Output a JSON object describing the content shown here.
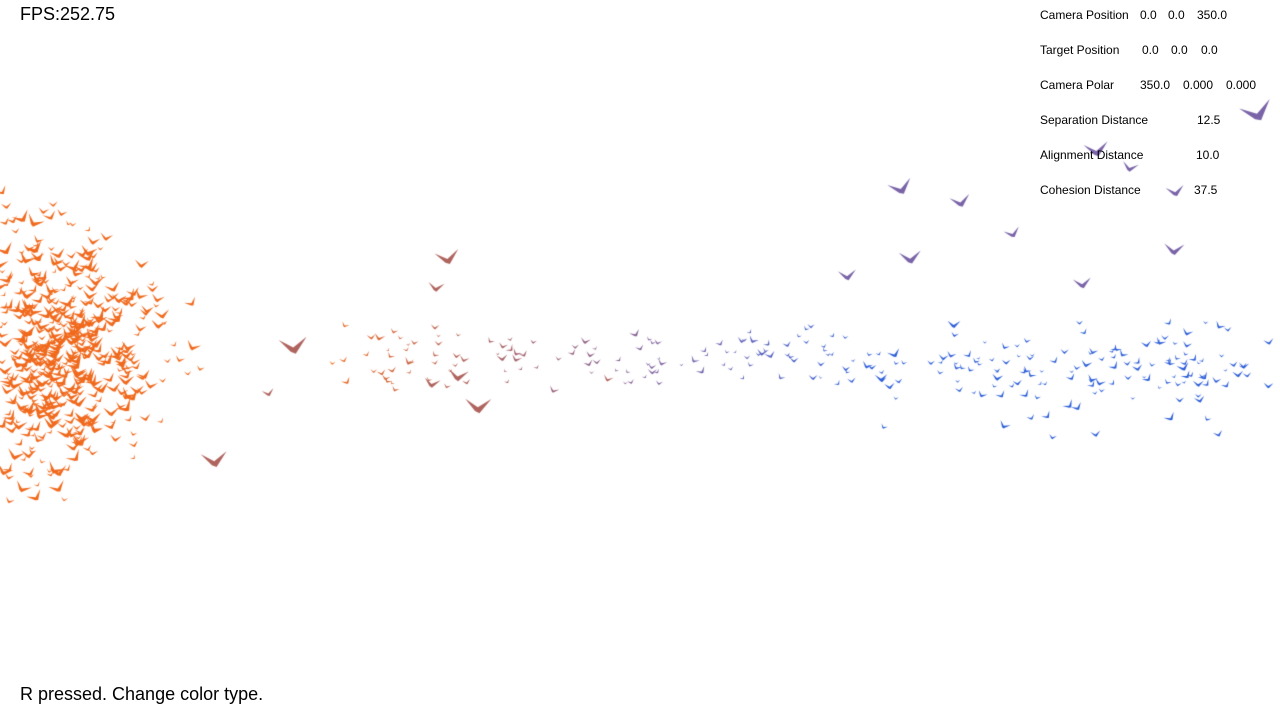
{
  "hud": {
    "fps": "FPS:252.75",
    "status": "R pressed. Change color type."
  },
  "params": {
    "camera_position": {
      "label": "Camera Position",
      "values": [
        "0.0",
        "0.0",
        "350.0"
      ]
    },
    "target_position": {
      "label": "Target Position",
      "values": [
        "0.0",
        "0.0",
        "0.0"
      ]
    },
    "camera_polar": {
      "label": "Camera Polar",
      "values": [
        "350.0",
        "0.000",
        "0.000"
      ]
    },
    "separation_distance": {
      "label": "Separation Distance",
      "value": "12.5"
    },
    "alignment_distance": {
      "label": "Alignment  Distance",
      "value": "10.0"
    },
    "cohesion_distance": {
      "label": "Cohesion  Distance",
      "value": "37.5"
    }
  },
  "colors": {
    "background": "#ffffff",
    "flock_orange": "#f06a1e",
    "flock_brown": "#b0645e",
    "flock_purple": "#7a64a8",
    "flock_blue": "#2e5fd8"
  }
}
